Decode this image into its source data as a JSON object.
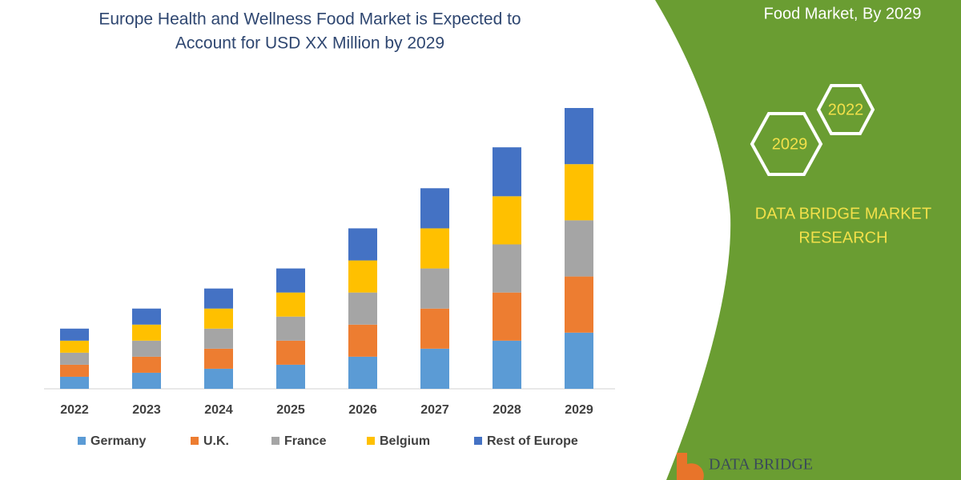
{
  "chart_data": {
    "type": "stacked-bar",
    "title": [
      "Europe Health and Wellness Food Market is Expected to",
      "Account for USD XX Million by 2029"
    ],
    "categories": [
      "2022",
      "2023",
      "2024",
      "2025",
      "2026",
      "2027",
      "2028",
      "2029"
    ],
    "series": [
      {
        "name": "Germany",
        "color": "#5b9bd5",
        "values": [
          15,
          20,
          25,
          30,
          40,
          50,
          60,
          70
        ]
      },
      {
        "name": "U.K.",
        "color": "#ed7d31",
        "values": [
          15,
          20,
          25,
          30,
          40,
          50,
          60,
          70
        ]
      },
      {
        "name": "France",
        "color": "#a5a5a5",
        "values": [
          15,
          20,
          25,
          30,
          40,
          50,
          60,
          70
        ]
      },
      {
        "name": "Belgium",
        "color": "#ffc000",
        "values": [
          15,
          20,
          25,
          30,
          40,
          50,
          60,
          70
        ]
      },
      {
        "name": "Rest of Europe",
        "color": "#4472c4",
        "values": [
          15,
          20,
          25,
          30,
          40,
          50,
          61,
          70
        ]
      }
    ]
  },
  "side_panel": {
    "heading": "Food Market, By 2029",
    "hexagons": [
      "2022",
      "2029"
    ],
    "brand": [
      "DATA BRIDGE MARKET",
      "RESEARCH"
    ],
    "logo": "DATA BRIDGE"
  }
}
